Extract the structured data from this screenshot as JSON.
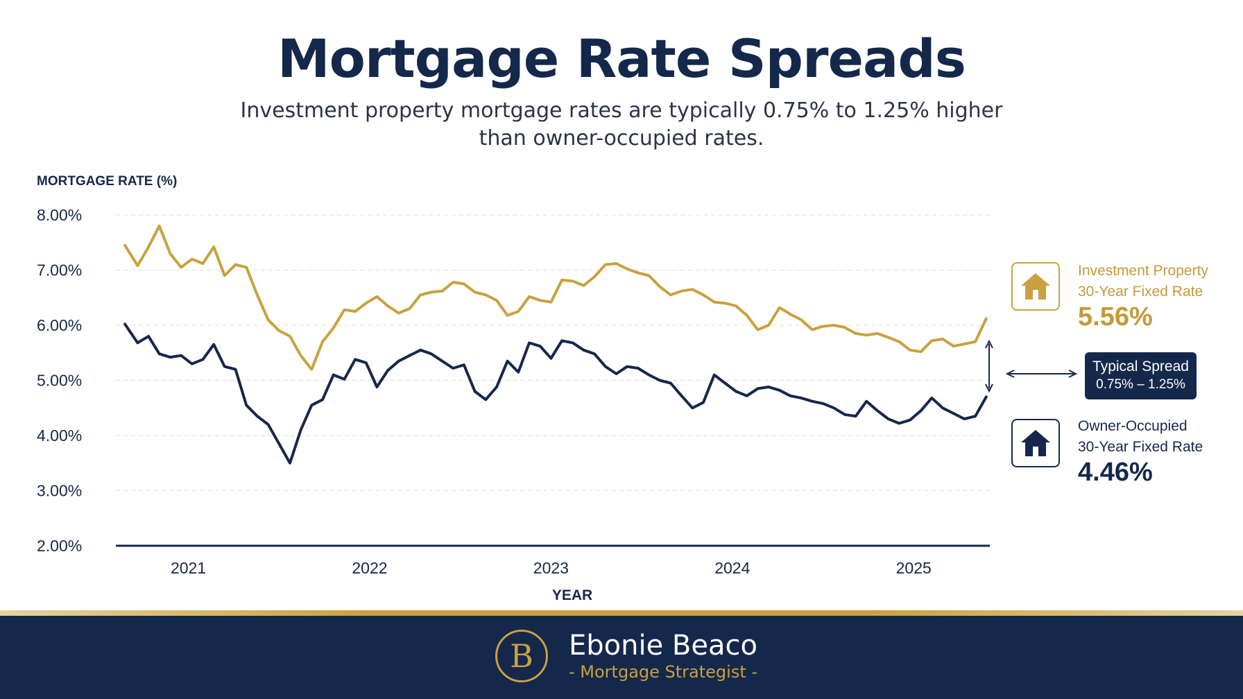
{
  "header": {
    "title": "Mortgage Rate Spreads",
    "subtitle_line1": "Investment property mortgage rates are typically 0.75% to 1.25% higher",
    "subtitle_line2": "than owner-occupied rates."
  },
  "colors": {
    "gold": "#c9a13f",
    "navy": "#14284b",
    "grid": "#dddddd"
  },
  "chart_data": {
    "type": "line",
    "ylabel": "MORTGAGE RATE (%)",
    "xlabel": "YEAR",
    "ylim": [
      2.0,
      8.0
    ],
    "y_ticks": [
      2,
      3,
      4,
      5,
      6,
      7,
      8
    ],
    "y_tick_labels": [
      "2.00%",
      "3.00%",
      "4.00%",
      "5.00%",
      "6.00%",
      "7.00%",
      "8.00%"
    ],
    "xlim": [
      2020.6,
      2025.42
    ],
    "x_ticks": [
      2021,
      2022,
      2023,
      2024,
      2025
    ],
    "x_tick_labels": [
      "2021",
      "2022",
      "2023",
      "2024",
      "2025"
    ],
    "grid": true,
    "legend_position": "right",
    "series": [
      {
        "name": "Investment Property 30-Year Fixed Rate",
        "color": "#c9a13f",
        "x": [
          2020.65,
          2020.72,
          2020.78,
          2020.84,
          2020.9,
          2020.96,
          2021.02,
          2021.08,
          2021.14,
          2021.2,
          2021.26,
          2021.32,
          2021.38,
          2021.44,
          2021.5,
          2021.56,
          2021.62,
          2021.68,
          2021.74,
          2021.8,
          2021.86,
          2021.92,
          2021.98,
          2022.04,
          2022.1,
          2022.16,
          2022.22,
          2022.28,
          2022.34,
          2022.4,
          2022.46,
          2022.52,
          2022.58,
          2022.64,
          2022.7,
          2022.76,
          2022.82,
          2022.88,
          2022.94,
          2023.0,
          2023.06,
          2023.12,
          2023.18,
          2023.24,
          2023.3,
          2023.36,
          2023.42,
          2023.48,
          2023.54,
          2023.6,
          2023.66,
          2023.72,
          2023.78,
          2023.84,
          2023.9,
          2023.96,
          2024.02,
          2024.08,
          2024.14,
          2024.2,
          2024.26,
          2024.32,
          2024.38,
          2024.44,
          2024.5,
          2024.56,
          2024.62,
          2024.68,
          2024.74,
          2024.8,
          2024.86,
          2024.92,
          2024.98,
          2025.04,
          2025.1,
          2025.16,
          2025.22,
          2025.28,
          2025.34,
          2025.4
        ],
        "values": [
          7.45,
          7.08,
          7.42,
          7.8,
          7.3,
          7.05,
          7.2,
          7.12,
          7.42,
          6.9,
          7.1,
          7.05,
          6.55,
          6.1,
          5.9,
          5.8,
          5.45,
          5.2,
          5.7,
          5.95,
          6.28,
          6.25,
          6.4,
          6.52,
          6.35,
          6.22,
          6.3,
          6.55,
          6.6,
          6.62,
          6.78,
          6.75,
          6.6,
          6.55,
          6.45,
          6.18,
          6.25,
          6.52,
          6.45,
          6.42,
          6.82,
          6.8,
          6.72,
          6.88,
          7.1,
          7.12,
          7.02,
          6.95,
          6.9,
          6.7,
          6.55,
          6.62,
          6.65,
          6.55,
          6.42,
          6.4,
          6.35,
          6.18,
          5.92,
          6.0,
          6.32,
          6.2,
          6.1,
          5.92,
          5.98,
          6.0,
          5.96,
          5.85,
          5.82,
          5.85,
          5.78,
          5.7,
          5.55,
          5.52,
          5.72,
          5.75,
          5.62,
          5.66,
          5.7,
          6.12
        ]
      },
      {
        "name": "Owner-Occupied 30-Year Fixed Rate",
        "color": "#14284b",
        "x": [
          2020.65,
          2020.72,
          2020.78,
          2020.84,
          2020.9,
          2020.96,
          2021.02,
          2021.08,
          2021.14,
          2021.2,
          2021.26,
          2021.32,
          2021.38,
          2021.44,
          2021.5,
          2021.56,
          2021.62,
          2021.68,
          2021.74,
          2021.8,
          2021.86,
          2021.92,
          2021.98,
          2022.04,
          2022.1,
          2022.16,
          2022.22,
          2022.28,
          2022.34,
          2022.4,
          2022.46,
          2022.52,
          2022.58,
          2022.64,
          2022.7,
          2022.76,
          2022.82,
          2022.88,
          2022.94,
          2023.0,
          2023.06,
          2023.12,
          2023.18,
          2023.24,
          2023.3,
          2023.36,
          2023.42,
          2023.48,
          2023.54,
          2023.6,
          2023.66,
          2023.72,
          2023.78,
          2023.84,
          2023.9,
          2023.96,
          2024.02,
          2024.08,
          2024.14,
          2024.2,
          2024.26,
          2024.32,
          2024.38,
          2024.44,
          2024.5,
          2024.56,
          2024.62,
          2024.68,
          2024.74,
          2024.8,
          2024.86,
          2024.92,
          2024.98,
          2025.04,
          2025.1,
          2025.16,
          2025.22,
          2025.28,
          2025.34,
          2025.4
        ],
        "values": [
          6.02,
          5.68,
          5.8,
          5.48,
          5.42,
          5.45,
          5.3,
          5.38,
          5.65,
          5.25,
          5.2,
          4.55,
          4.35,
          4.2,
          3.85,
          3.5,
          4.1,
          4.55,
          4.65,
          5.1,
          5.02,
          5.38,
          5.32,
          4.88,
          5.18,
          5.35,
          5.45,
          5.55,
          5.48,
          5.35,
          5.22,
          5.28,
          4.8,
          4.65,
          4.88,
          5.35,
          5.15,
          5.68,
          5.62,
          5.4,
          5.72,
          5.68,
          5.55,
          5.48,
          5.25,
          5.12,
          5.25,
          5.22,
          5.1,
          5.0,
          4.95,
          4.72,
          4.5,
          4.6,
          5.1,
          4.95,
          4.8,
          4.72,
          4.85,
          4.88,
          4.82,
          4.72,
          4.68,
          4.62,
          4.58,
          4.5,
          4.38,
          4.35,
          4.62,
          4.45,
          4.3,
          4.22,
          4.28,
          4.45,
          4.68,
          4.5,
          4.4,
          4.3,
          4.35,
          4.7
        ]
      }
    ]
  },
  "legend": {
    "investment": {
      "label_line1": "Investment Property",
      "label_line2": "30-Year Fixed Rate",
      "value": "5.56%",
      "icon": "house-icon"
    },
    "owner": {
      "label_line1": "Owner-Occupied",
      "label_line2": "30-Year Fixed Rate",
      "value": "4.46%",
      "icon": "house-icon"
    },
    "spread": {
      "label_line1": "Typical Spread",
      "label_line2": "0.75% – 1.25%"
    }
  },
  "footer": {
    "logo_letter": "B",
    "name": "Ebonie Beaco",
    "role": "- Mortgage Strategist -"
  }
}
